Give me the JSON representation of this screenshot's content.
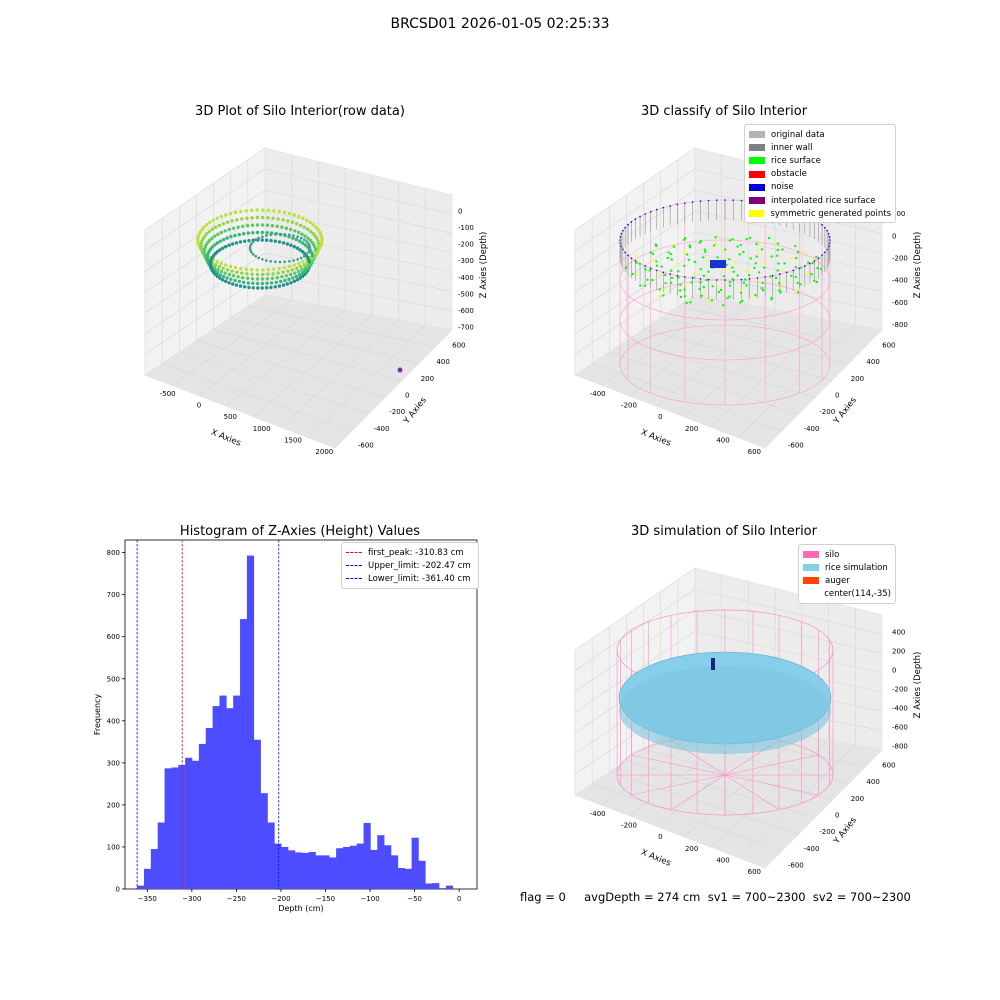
{
  "suptitle": "BRCSD01 2026-01-05 02:25:33",
  "footer": "flag = 0     avgDepth = 274 cm  sv1 = 700~2300  sv2 = 700~2300",
  "panel1": {
    "title": "3D Plot of Silo Interior(row data)",
    "xlabel": "X Axies",
    "ylabel": "Y Axies",
    "zlabel": "Z Axies (Depth)",
    "xticks": [
      "-500",
      "0",
      "500",
      "1000",
      "1500",
      "2000"
    ],
    "yticks": [
      "600",
      "400",
      "200",
      "0",
      "-200",
      "-400",
      "-600"
    ],
    "zticks": [
      "0",
      "-100",
      "-200",
      "-300",
      "-400",
      "-500",
      "-600",
      "-700"
    ]
  },
  "panel2": {
    "title": "3D classify of Silo Interior",
    "xlabel": "X Axies",
    "ylabel": "Y Axies",
    "zlabel": "Z Axies (Depth)",
    "xticks": [
      "-400",
      "-200",
      "0",
      "200",
      "400",
      "600"
    ],
    "yticks": [
      "600",
      "400",
      "200",
      "0",
      "-200",
      "-400",
      "-600"
    ],
    "zticks": [
      "200",
      "0",
      "-200",
      "-400",
      "-600",
      "-800"
    ],
    "legend": [
      {
        "label": "original data",
        "color": "#b3b3b3"
      },
      {
        "label": "inner wall",
        "color": "#808080"
      },
      {
        "label": "rice surface",
        "color": "#00ff00"
      },
      {
        "label": "obstacle",
        "color": "#ff0000"
      },
      {
        "label": "noise",
        "color": "#0000dd"
      },
      {
        "label": "interpolated rice surface",
        "color": "#800080"
      },
      {
        "label": "symmetric generated points",
        "color": "#ffff00"
      }
    ]
  },
  "panel4": {
    "title": "3D simulation of Silo Interior",
    "xlabel": "X Axies",
    "ylabel": "Y Axies",
    "zlabel": "Z Axies (Depth)",
    "xticks": [
      "-400",
      "-200",
      "0",
      "200",
      "400",
      "600"
    ],
    "yticks": [
      "600",
      "400",
      "200",
      "0",
      "-200",
      "-400",
      "-600"
    ],
    "zticks": [
      "400",
      "200",
      "0",
      "-200",
      "-400",
      "-600",
      "-800"
    ],
    "legend": [
      {
        "label": "silo",
        "color": "#ff69b4"
      },
      {
        "label": "rice simulation",
        "color": "#87ceeb"
      },
      {
        "label": "auger",
        "color": "#ff4500"
      },
      {
        "label": "center(114,-35)",
        "color": ""
      }
    ]
  },
  "chart_data": {
    "type": "bar",
    "title": "Histogram of Z-Axies (Height) Values",
    "xlabel": "Depth (cm)",
    "ylabel": "Frequency",
    "xlim": [
      -375,
      20
    ],
    "ylim": [
      0,
      830
    ],
    "xticks": [
      -350,
      -300,
      -250,
      -200,
      -150,
      -100,
      -50,
      0
    ],
    "yticks": [
      0,
      100,
      200,
      300,
      400,
      500,
      600,
      700,
      800
    ],
    "bin_start": -361.4,
    "bin_width": 7.7,
    "values": [
      8,
      48,
      95,
      158,
      287,
      289,
      295,
      312,
      305,
      345,
      383,
      435,
      460,
      430,
      460,
      642,
      793,
      355,
      228,
      158,
      108,
      100,
      92,
      87,
      86,
      88,
      80,
      80,
      75,
      97,
      100,
      103,
      108,
      157,
      93,
      128,
      104,
      80,
      50,
      48,
      122,
      67,
      13,
      14,
      2,
      8
    ],
    "bar_color": "#4d4dff",
    "vlines": [
      {
        "x": -310.83,
        "color": "#ff0000",
        "label": "first_peak: -310.83 cm"
      },
      {
        "x": -202.47,
        "color": "#0000ff",
        "label": "Upper_limit: -202.47 cm"
      },
      {
        "x": -361.4,
        "color": "#0000ff",
        "label": "Lower_limit: -361.40 cm"
      }
    ],
    "legend_position": "upper right"
  }
}
